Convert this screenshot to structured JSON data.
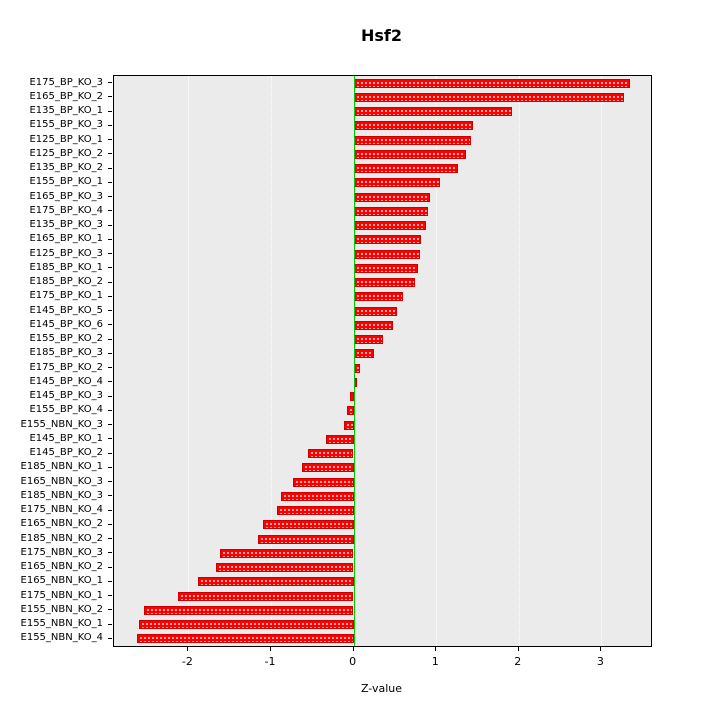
{
  "colors": {
    "bar": "#FF0000",
    "bar_border": "#CC0000",
    "panel_bg": "#EBEBEB",
    "grid": "#FFFFFF",
    "zero_line": "#00CC00",
    "axis": "#000000"
  },
  "chart_data": {
    "type": "bar",
    "orientation": "horizontal",
    "title": "Hsf2",
    "xlabel": "Z-value",
    "ylabel": "",
    "grid": true,
    "legend": "none",
    "xlim": [
      -2.9,
      3.6
    ],
    "xticks": [
      -2,
      -1,
      0,
      1,
      2,
      3
    ],
    "zero_line": 0,
    "categories": [
      "E175_BP_KO_3",
      "E165_BP_KO_2",
      "E135_BP_KO_1",
      "E155_BP_KO_3",
      "E125_BP_KO_1",
      "E125_BP_KO_2",
      "E135_BP_KO_2",
      "E155_BP_KO_1",
      "E165_BP_KO_3",
      "E175_BP_KO_4",
      "E135_BP_KO_3",
      "E165_BP_KO_1",
      "E125_BP_KO_3",
      "E185_BP_KO_1",
      "E185_BP_KO_2",
      "E175_BP_KO_1",
      "E145_BP_KO_5",
      "E145_BP_KO_6",
      "E155_BP_KO_2",
      "E185_BP_KO_3",
      "E175_BP_KO_2",
      "E145_BP_KO_4",
      "E145_BP_KO_3",
      "E155_BP_KO_4",
      "E155_NBN_KO_3",
      "E145_BP_KO_1",
      "E145_BP_KO_2",
      "E185_NBN_KO_1",
      "E165_NBN_KO_3",
      "E185_NBN_KO_3",
      "E175_NBN_KO_4",
      "E165_NBN_KO_2",
      "E185_NBN_KO_2",
      "E175_NBN_KO_3",
      "E165_NBN_KO_2",
      "E165_NBN_KO_1",
      "E175_NBN_KO_1",
      "E155_NBN_KO_2",
      "E155_NBN_KO_1",
      "E155_NBN_KO_4"
    ],
    "values": [
      3.35,
      3.27,
      1.92,
      1.45,
      1.42,
      1.36,
      1.26,
      1.05,
      0.93,
      0.9,
      0.88,
      0.82,
      0.8,
      0.78,
      0.74,
      0.6,
      0.52,
      0.48,
      0.36,
      0.25,
      0.08,
      0.04,
      -0.05,
      -0.08,
      -0.12,
      -0.33,
      -0.55,
      -0.62,
      -0.73,
      -0.88,
      -0.93,
      -1.1,
      -1.16,
      -1.62,
      -1.66,
      -1.88,
      -2.12,
      -2.54,
      -2.6,
      -2.62
    ]
  }
}
